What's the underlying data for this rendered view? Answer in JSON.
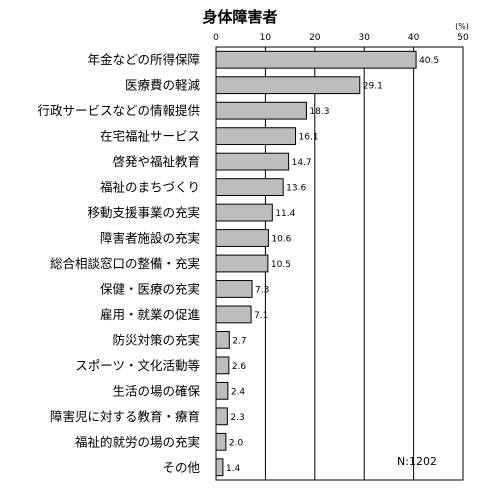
{
  "chart_data": {
    "type": "bar",
    "orientation": "horizontal",
    "title": "身体障害者",
    "unit": "(%)",
    "xlim": [
      0,
      50
    ],
    "xticks": [
      0,
      10,
      20,
      30,
      40,
      50
    ],
    "grid": true,
    "note": "N:1202",
    "bar_color": "#bdbdbd",
    "categories": [
      "年金などの所得保障",
      "医療費の軽減",
      "行政サービスなどの情報提供",
      "在宅福祉サービス",
      "啓発や福祉教育",
      "福祉のまちづくり",
      "移動支援事業の充実",
      "障害者施設の充実",
      "総合相談窓口の整備・充実",
      "保健・医療の充実",
      "雇用・就業の促進",
      "防災対策の充実",
      "スポーツ・文化活動等",
      "生活の場の確保",
      "障害児に対する教育・療育",
      "福祉的就労の場の充実",
      "その他"
    ],
    "values": [
      40.5,
      29.1,
      18.3,
      16.1,
      14.7,
      13.6,
      11.4,
      10.6,
      10.5,
      7.3,
      7.1,
      2.7,
      2.6,
      2.4,
      2.3,
      2.0,
      1.4
    ]
  }
}
